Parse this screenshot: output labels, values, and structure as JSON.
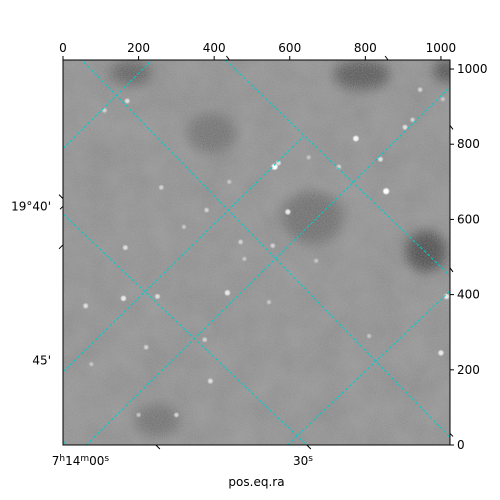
{
  "chart_data": {
    "type": "image",
    "xlabel": "pos.eq.ra",
    "ylabel": "",
    "pixel_axes": {
      "x_ticks": [
        "0",
        "200",
        "400",
        "600",
        "800",
        "1000"
      ],
      "x_tick_values": [
        0,
        200,
        400,
        600,
        800,
        1000
      ],
      "y_ticks": [
        "0",
        "200",
        "400",
        "600",
        "800",
        "1000"
      ],
      "y_tick_values": [
        0,
        200,
        400,
        600,
        800,
        1000
      ],
      "xlim": [
        0,
        1024
      ],
      "ylim": [
        0,
        1024
      ]
    },
    "world_axes": {
      "ra_tick_labels": [
        "7h14m00s",
        "30s"
      ],
      "dec_tick_labels": [
        "19°40'",
        "45'"
      ]
    },
    "grid": true,
    "grid_color": "#00cccc",
    "colormap": "gray",
    "bright_sources": [
      {
        "x": 560,
        "y": 740,
        "level": 1.0
      },
      {
        "x": 855,
        "y": 675,
        "level": 1.0
      },
      {
        "x": 775,
        "y": 815,
        "level": 0.9
      },
      {
        "x": 595,
        "y": 620,
        "level": 0.8
      },
      {
        "x": 160,
        "y": 390,
        "level": 0.8
      },
      {
        "x": 1015,
        "y": 395,
        "level": 0.8
      },
      {
        "x": 1000,
        "y": 245,
        "level": 0.8
      },
      {
        "x": 435,
        "y": 405,
        "level": 0.8
      },
      {
        "x": 60,
        "y": 370,
        "level": 0.7
      },
      {
        "x": 165,
        "y": 525,
        "level": 0.7
      },
      {
        "x": 250,
        "y": 395,
        "level": 0.7
      },
      {
        "x": 390,
        "y": 170,
        "level": 0.7
      },
      {
        "x": 840,
        "y": 760,
        "level": 0.7
      },
      {
        "x": 170,
        "y": 915,
        "level": 0.7
      },
      {
        "x": 905,
        "y": 845,
        "level": 0.7
      },
      {
        "x": 570,
        "y": 750,
        "level": 0.7
      },
      {
        "x": 555,
        "y": 530,
        "level": 0.6
      },
      {
        "x": 470,
        "y": 540,
        "level": 0.6
      },
      {
        "x": 380,
        "y": 625,
        "level": 0.6
      },
      {
        "x": 260,
        "y": 685,
        "level": 0.6
      },
      {
        "x": 110,
        "y": 890,
        "level": 0.6
      },
      {
        "x": 220,
        "y": 260,
        "level": 0.6
      },
      {
        "x": 375,
        "y": 280,
        "level": 0.6
      },
      {
        "x": 300,
        "y": 80,
        "level": 0.6
      },
      {
        "x": 730,
        "y": 740,
        "level": 0.6
      },
      {
        "x": 925,
        "y": 865,
        "level": 0.6
      },
      {
        "x": 945,
        "y": 945,
        "level": 0.6
      },
      {
        "x": 545,
        "y": 380,
        "level": 0.5
      },
      {
        "x": 810,
        "y": 290,
        "level": 0.5
      },
      {
        "x": 320,
        "y": 580,
        "level": 0.5
      },
      {
        "x": 440,
        "y": 700,
        "level": 0.5
      },
      {
        "x": 480,
        "y": 495,
        "level": 0.5
      },
      {
        "x": 200,
        "y": 80,
        "level": 0.5
      },
      {
        "x": 75,
        "y": 215,
        "level": 0.5
      },
      {
        "x": 670,
        "y": 490,
        "level": 0.5
      },
      {
        "x": 1005,
        "y": 920,
        "level": 0.5
      },
      {
        "x": 650,
        "y": 765,
        "level": 0.5
      }
    ],
    "extended_features": [
      {
        "x": 960,
        "y": 515,
        "rx": 55,
        "ry": 55,
        "level": 0.25
      },
      {
        "x": 790,
        "y": 985,
        "rx": 75,
        "ry": 40,
        "level": 0.3
      },
      {
        "x": 180,
        "y": 990,
        "rx": 55,
        "ry": 35,
        "level": 0.35
      },
      {
        "x": 1015,
        "y": 995,
        "rx": 35,
        "ry": 30,
        "level": 0.25
      },
      {
        "x": 660,
        "y": 605,
        "rx": 80,
        "ry": 70,
        "level": 0.4
      },
      {
        "x": 395,
        "y": 830,
        "rx": 65,
        "ry": 55,
        "level": 0.42
      },
      {
        "x": 250,
        "y": 65,
        "rx": 60,
        "ry": 45,
        "level": 0.42
      }
    ]
  }
}
